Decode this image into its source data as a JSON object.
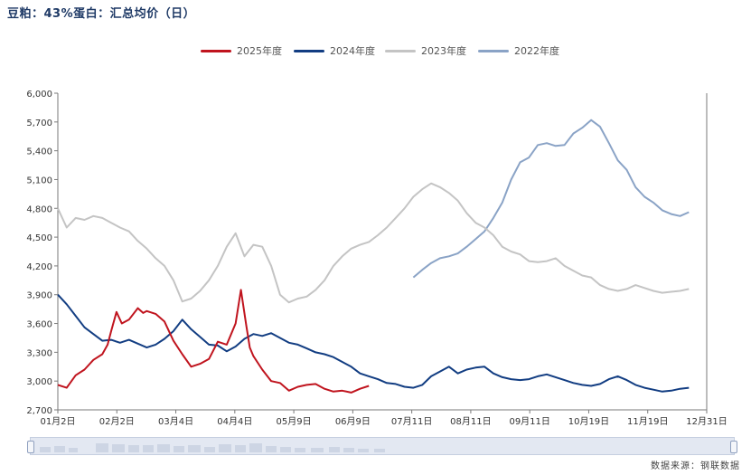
{
  "title": "豆粕：43%蛋白：汇总均价（日）",
  "source": "数据来源：钢联数据",
  "legend": [
    "2025年度",
    "2024年度",
    "2023年度",
    "2022年度"
  ],
  "colors": {
    "2025年度": "#c0141e",
    "2024年度": "#123d82",
    "2023年度": "#c4c4c4",
    "2022年度": "#8aa3c6"
  },
  "chart_data": {
    "type": "line",
    "title": "豆粕：43%蛋白：汇总均价（日）",
    "ylim": [
      2700,
      6000
    ],
    "yticks": [
      "2,700",
      "3,000",
      "3,300",
      "3,600",
      "3,900",
      "4,200",
      "4,500",
      "4,800",
      "5,100",
      "5,400",
      "5,700",
      "6,000"
    ],
    "xticks": [
      "01月2日",
      "02月2日",
      "03月4日",
      "04月4日",
      "05月9日",
      "06月9日",
      "07月11日",
      "08月11日",
      "09月11日",
      "10月19日",
      "11月19日",
      "12月31日"
    ],
    "series": [
      {
        "name": "2025年度",
        "x": [
          0,
          5,
          10,
          15,
          20,
          25,
          28,
          30,
          33,
          36,
          40,
          45,
          48,
          50,
          55,
          60,
          65,
          70,
          75,
          80,
          85,
          90,
          95,
          100,
          103,
          106,
          108,
          110,
          115,
          120,
          125,
          130,
          135,
          140,
          145,
          150,
          155,
          160,
          165,
          170,
          175
        ],
        "values": [
          2960,
          2930,
          3060,
          3120,
          3220,
          3280,
          3380,
          3520,
          3720,
          3600,
          3640,
          3760,
          3710,
          3730,
          3700,
          3620,
          3420,
          3280,
          3150,
          3180,
          3230,
          3410,
          3380,
          3600,
          3950,
          3580,
          3350,
          3260,
          3120,
          3000,
          2980,
          2900,
          2940,
          2960,
          2970,
          2920,
          2890,
          2900,
          2880,
          2920,
          2950
        ]
      },
      {
        "name": "2024年度",
        "x": [
          0,
          5,
          10,
          15,
          20,
          25,
          30,
          35,
          40,
          45,
          50,
          55,
          60,
          65,
          70,
          75,
          80,
          85,
          90,
          95,
          100,
          105,
          110,
          115,
          120,
          125,
          130,
          135,
          140,
          145,
          150,
          155,
          160,
          165,
          170,
          175,
          180,
          185,
          190,
          195,
          200,
          205,
          210,
          215,
          220,
          225,
          230,
          235,
          240,
          245,
          250,
          255,
          260,
          265,
          270,
          275,
          280,
          285,
          290,
          295,
          300,
          305,
          310,
          315,
          320,
          325,
          330,
          335,
          340,
          345,
          350,
          355
        ],
        "values": [
          3900,
          3800,
          3680,
          3560,
          3490,
          3420,
          3430,
          3400,
          3430,
          3390,
          3350,
          3380,
          3440,
          3520,
          3640,
          3540,
          3460,
          3380,
          3370,
          3310,
          3360,
          3440,
          3490,
          3470,
          3500,
          3450,
          3400,
          3380,
          3340,
          3300,
          3280,
          3250,
          3200,
          3150,
          3080,
          3050,
          3020,
          2980,
          2970,
          2940,
          2930,
          2960,
          3050,
          3100,
          3150,
          3080,
          3120,
          3140,
          3150,
          3080,
          3040,
          3020,
          3010,
          3020,
          3050,
          3070,
          3040,
          3010,
          2980,
          2960,
          2950,
          2970,
          3020,
          3050,
          3010,
          2960,
          2930,
          2910,
          2890,
          2900,
          2920,
          2930
        ]
      },
      {
        "name": "2023年度",
        "x": [
          0,
          5,
          10,
          15,
          20,
          25,
          30,
          35,
          40,
          45,
          50,
          55,
          60,
          65,
          70,
          75,
          80,
          85,
          90,
          95,
          100,
          105,
          110,
          115,
          120,
          125,
          130,
          135,
          140,
          145,
          150,
          155,
          160,
          165,
          170,
          175,
          180,
          185,
          190,
          195,
          200,
          205,
          210,
          215,
          220,
          225,
          230,
          235,
          240,
          245,
          250,
          255,
          260,
          265,
          270,
          275,
          280,
          285,
          290,
          295,
          300,
          305,
          310,
          315,
          320,
          325,
          330,
          335,
          340,
          345,
          350,
          355
        ],
        "values": [
          4800,
          4600,
          4700,
          4680,
          4720,
          4700,
          4650,
          4600,
          4560,
          4460,
          4380,
          4280,
          4200,
          4050,
          3830,
          3860,
          3940,
          4050,
          4200,
          4400,
          4540,
          4300,
          4420,
          4400,
          4200,
          3900,
          3820,
          3860,
          3880,
          3950,
          4050,
          4200,
          4300,
          4380,
          4420,
          4450,
          4520,
          4600,
          4700,
          4800,
          4920,
          5000,
          5060,
          5020,
          4960,
          4880,
          4750,
          4650,
          4600,
          4520,
          4400,
          4350,
          4320,
          4250,
          4240,
          4250,
          4280,
          4200,
          4150,
          4100,
          4080,
          4000,
          3960,
          3940,
          3960,
          4000,
          3970,
          3940,
          3920,
          3930,
          3940,
          3960
        ]
      },
      {
        "name": "2022年度",
        "x": [
          200,
          205,
          210,
          215,
          220,
          225,
          230,
          235,
          240,
          245,
          250,
          255,
          260,
          265,
          270,
          275,
          280,
          285,
          290,
          295,
          300,
          305,
          310,
          315,
          320,
          325,
          330,
          335,
          340,
          345,
          350,
          355
        ],
        "values": [
          4080,
          4160,
          4230,
          4280,
          4300,
          4330,
          4400,
          4480,
          4560,
          4700,
          4860,
          5100,
          5280,
          5330,
          5460,
          5480,
          5450,
          5460,
          5580,
          5640,
          5720,
          5650,
          5480,
          5300,
          5200,
          5020,
          4920,
          4860,
          4780,
          4740,
          4720,
          4760
        ]
      }
    ]
  }
}
